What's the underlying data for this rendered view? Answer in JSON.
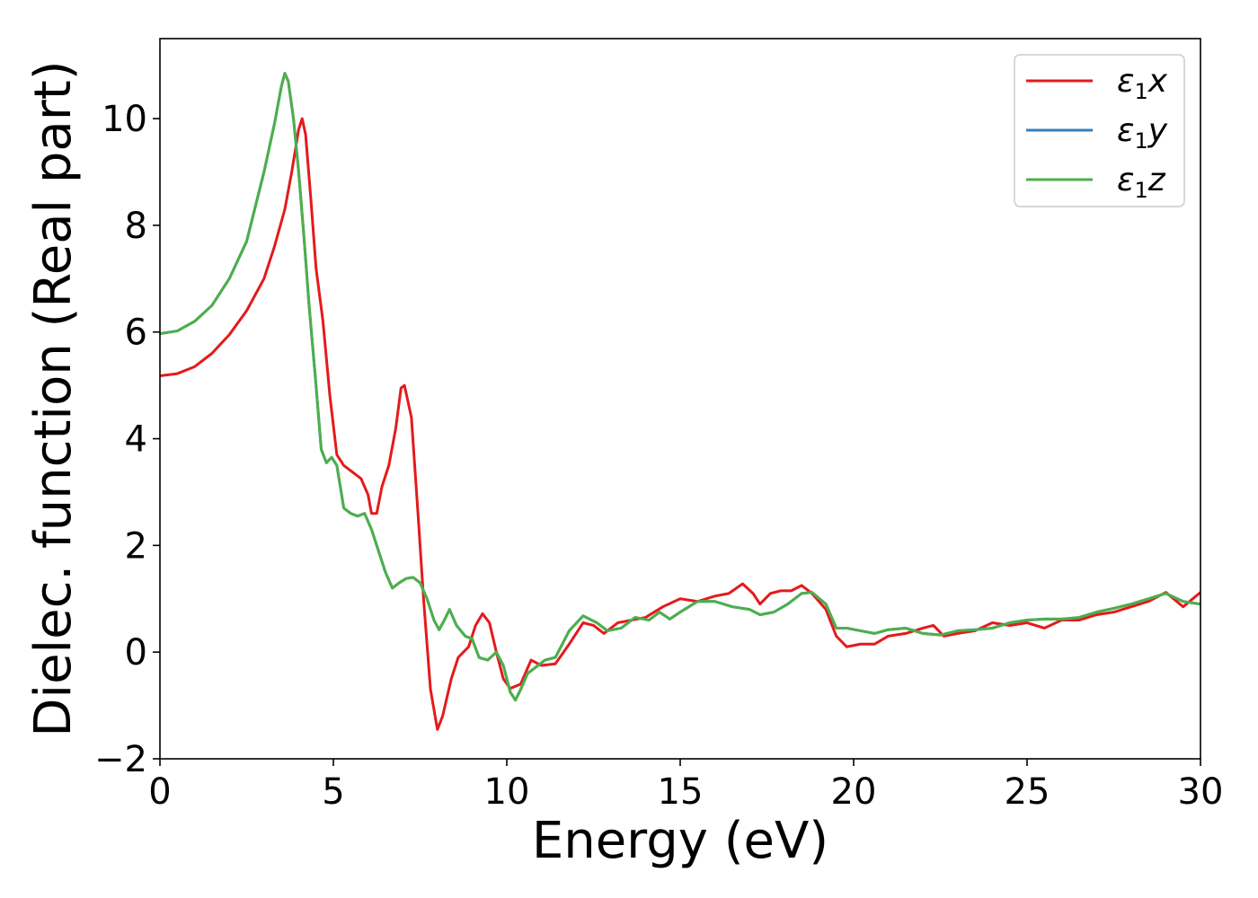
{
  "chart_data": {
    "type": "line",
    "title": "",
    "xlabel": "Energy (eV)",
    "ylabel": "Dielec. function (Real part)",
    "xlim": [
      0,
      30
    ],
    "ylim": [
      -2,
      11.5
    ],
    "xticks": [
      0,
      5,
      10,
      15,
      20,
      25,
      30
    ],
    "xtick_labels": [
      "0",
      "5",
      "10",
      "15",
      "20",
      "25",
      "30"
    ],
    "yticks": [
      -2,
      0,
      2,
      4,
      6,
      8,
      10
    ],
    "ytick_labels": [
      "−2",
      "0",
      "2",
      "4",
      "6",
      "8",
      "10"
    ],
    "grid": false,
    "legend_position": "top-right",
    "series": [
      {
        "name": "ε₁x",
        "legend_main": "ε",
        "legend_sub": "1",
        "legend_var": "x",
        "color": "#e41a1c",
        "points": [
          [
            0,
            5.18
          ],
          [
            0.5,
            5.22
          ],
          [
            1.0,
            5.35
          ],
          [
            1.5,
            5.6
          ],
          [
            2.0,
            5.95
          ],
          [
            2.5,
            6.4
          ],
          [
            3.0,
            7.0
          ],
          [
            3.3,
            7.6
          ],
          [
            3.6,
            8.3
          ],
          [
            3.8,
            9.0
          ],
          [
            4.0,
            9.8
          ],
          [
            4.1,
            10.0
          ],
          [
            4.2,
            9.7
          ],
          [
            4.35,
            8.5
          ],
          [
            4.5,
            7.2
          ],
          [
            4.7,
            6.2
          ],
          [
            4.9,
            4.8
          ],
          [
            5.1,
            3.7
          ],
          [
            5.3,
            3.5
          ],
          [
            5.5,
            3.4
          ],
          [
            5.8,
            3.25
          ],
          [
            6.0,
            2.95
          ],
          [
            6.1,
            2.6
          ],
          [
            6.25,
            2.6
          ],
          [
            6.4,
            3.1
          ],
          [
            6.6,
            3.5
          ],
          [
            6.8,
            4.2
          ],
          [
            6.95,
            4.95
          ],
          [
            7.05,
            5.0
          ],
          [
            7.25,
            4.4
          ],
          [
            7.45,
            2.5
          ],
          [
            7.6,
            1.0
          ],
          [
            7.8,
            -0.7
          ],
          [
            8.0,
            -1.45
          ],
          [
            8.15,
            -1.2
          ],
          [
            8.4,
            -0.5
          ],
          [
            8.6,
            -0.1
          ],
          [
            8.9,
            0.1
          ],
          [
            9.1,
            0.5
          ],
          [
            9.3,
            0.72
          ],
          [
            9.5,
            0.55
          ],
          [
            9.7,
            0.0
          ],
          [
            9.9,
            -0.5
          ],
          [
            10.1,
            -0.68
          ],
          [
            10.4,
            -0.6
          ],
          [
            10.7,
            -0.15
          ],
          [
            11.0,
            -0.25
          ],
          [
            11.4,
            -0.22
          ],
          [
            11.8,
            0.15
          ],
          [
            12.2,
            0.55
          ],
          [
            12.5,
            0.5
          ],
          [
            12.8,
            0.35
          ],
          [
            13.2,
            0.55
          ],
          [
            13.6,
            0.6
          ],
          [
            14.0,
            0.65
          ],
          [
            14.5,
            0.85
          ],
          [
            15.0,
            1.0
          ],
          [
            15.5,
            0.95
          ],
          [
            16.0,
            1.05
          ],
          [
            16.4,
            1.1
          ],
          [
            16.8,
            1.28
          ],
          [
            17.1,
            1.1
          ],
          [
            17.3,
            0.9
          ],
          [
            17.6,
            1.1
          ],
          [
            17.9,
            1.15
          ],
          [
            18.2,
            1.15
          ],
          [
            18.5,
            1.25
          ],
          [
            18.8,
            1.1
          ],
          [
            19.2,
            0.8
          ],
          [
            19.5,
            0.3
          ],
          [
            19.8,
            0.1
          ],
          [
            20.2,
            0.15
          ],
          [
            20.6,
            0.15
          ],
          [
            21.0,
            0.3
          ],
          [
            21.5,
            0.35
          ],
          [
            22.0,
            0.45
          ],
          [
            22.3,
            0.5
          ],
          [
            22.6,
            0.3
          ],
          [
            23.0,
            0.35
          ],
          [
            23.5,
            0.4
          ],
          [
            24.0,
            0.55
          ],
          [
            24.5,
            0.5
          ],
          [
            25.0,
            0.55
          ],
          [
            25.5,
            0.45
          ],
          [
            26.0,
            0.6
          ],
          [
            26.5,
            0.6
          ],
          [
            27.0,
            0.7
          ],
          [
            27.5,
            0.75
          ],
          [
            28.0,
            0.85
          ],
          [
            28.5,
            0.95
          ],
          [
            29.0,
            1.12
          ],
          [
            29.5,
            0.85
          ],
          [
            30.0,
            1.12
          ]
        ]
      },
      {
        "name": "ε₁y",
        "legend_main": "ε",
        "legend_sub": "1",
        "legend_var": "y",
        "color": "#377eb8",
        "points": [
          [
            0,
            5.97
          ],
          [
            0.5,
            6.02
          ],
          [
            1.0,
            6.2
          ],
          [
            1.5,
            6.5
          ],
          [
            2.0,
            7.0
          ],
          [
            2.5,
            7.7
          ],
          [
            3.0,
            9.0
          ],
          [
            3.3,
            9.9
          ],
          [
            3.5,
            10.6
          ],
          [
            3.6,
            10.85
          ],
          [
            3.7,
            10.7
          ],
          [
            3.85,
            10.0
          ],
          [
            4.0,
            9.0
          ],
          [
            4.15,
            7.8
          ],
          [
            4.3,
            6.5
          ],
          [
            4.5,
            5.0
          ],
          [
            4.65,
            3.8
          ],
          [
            4.8,
            3.55
          ],
          [
            4.95,
            3.65
          ],
          [
            5.1,
            3.5
          ],
          [
            5.3,
            2.7
          ],
          [
            5.5,
            2.6
          ],
          [
            5.7,
            2.55
          ],
          [
            5.9,
            2.6
          ],
          [
            6.1,
            2.3
          ],
          [
            6.3,
            1.9
          ],
          [
            6.5,
            1.5
          ],
          [
            6.7,
            1.2
          ],
          [
            6.9,
            1.3
          ],
          [
            7.1,
            1.38
          ],
          [
            7.3,
            1.4
          ],
          [
            7.5,
            1.3
          ],
          [
            7.7,
            1.0
          ],
          [
            7.9,
            0.6
          ],
          [
            8.05,
            0.42
          ],
          [
            8.2,
            0.6
          ],
          [
            8.35,
            0.8
          ],
          [
            8.55,
            0.5
          ],
          [
            8.8,
            0.3
          ],
          [
            9.0,
            0.25
          ],
          [
            9.2,
            -0.1
          ],
          [
            9.45,
            -0.15
          ],
          [
            9.7,
            0.0
          ],
          [
            9.9,
            -0.25
          ],
          [
            10.1,
            -0.75
          ],
          [
            10.25,
            -0.9
          ],
          [
            10.4,
            -0.7
          ],
          [
            10.6,
            -0.4
          ],
          [
            10.8,
            -0.3
          ],
          [
            11.1,
            -0.15
          ],
          [
            11.4,
            -0.1
          ],
          [
            11.8,
            0.4
          ],
          [
            12.2,
            0.68
          ],
          [
            12.6,
            0.55
          ],
          [
            12.9,
            0.4
          ],
          [
            13.3,
            0.45
          ],
          [
            13.7,
            0.65
          ],
          [
            14.1,
            0.6
          ],
          [
            14.4,
            0.75
          ],
          [
            14.7,
            0.62
          ],
          [
            15.0,
            0.75
          ],
          [
            15.5,
            0.95
          ],
          [
            16.0,
            0.95
          ],
          [
            16.5,
            0.85
          ],
          [
            17.0,
            0.8
          ],
          [
            17.3,
            0.7
          ],
          [
            17.7,
            0.75
          ],
          [
            18.1,
            0.9
          ],
          [
            18.5,
            1.1
          ],
          [
            18.8,
            1.12
          ],
          [
            19.2,
            0.9
          ],
          [
            19.5,
            0.45
          ],
          [
            19.8,
            0.45
          ],
          [
            20.2,
            0.4
          ],
          [
            20.6,
            0.35
          ],
          [
            21.0,
            0.42
          ],
          [
            21.5,
            0.45
          ],
          [
            22.0,
            0.35
          ],
          [
            22.5,
            0.32
          ],
          [
            23.0,
            0.4
          ],
          [
            23.5,
            0.42
          ],
          [
            24.0,
            0.45
          ],
          [
            24.5,
            0.55
          ],
          [
            25.0,
            0.6
          ],
          [
            25.5,
            0.62
          ],
          [
            26.0,
            0.62
          ],
          [
            26.5,
            0.65
          ],
          [
            27.0,
            0.75
          ],
          [
            27.5,
            0.82
          ],
          [
            28.0,
            0.9
          ],
          [
            28.5,
            1.0
          ],
          [
            29.0,
            1.1
          ],
          [
            29.5,
            0.95
          ],
          [
            30.0,
            0.9
          ]
        ]
      },
      {
        "name": "ε₁z",
        "legend_main": "ε",
        "legend_sub": "1",
        "legend_var": "z",
        "color": "#4daf4a",
        "points": [
          [
            0,
            5.97
          ],
          [
            0.5,
            6.02
          ],
          [
            1.0,
            6.2
          ],
          [
            1.5,
            6.5
          ],
          [
            2.0,
            7.0
          ],
          [
            2.5,
            7.7
          ],
          [
            3.0,
            9.0
          ],
          [
            3.3,
            9.9
          ],
          [
            3.5,
            10.6
          ],
          [
            3.6,
            10.85
          ],
          [
            3.7,
            10.7
          ],
          [
            3.85,
            10.0
          ],
          [
            4.0,
            9.0
          ],
          [
            4.15,
            7.8
          ],
          [
            4.3,
            6.5
          ],
          [
            4.5,
            5.0
          ],
          [
            4.65,
            3.8
          ],
          [
            4.8,
            3.55
          ],
          [
            4.95,
            3.65
          ],
          [
            5.1,
            3.5
          ],
          [
            5.3,
            2.7
          ],
          [
            5.5,
            2.6
          ],
          [
            5.7,
            2.55
          ],
          [
            5.9,
            2.6
          ],
          [
            6.1,
            2.3
          ],
          [
            6.3,
            1.9
          ],
          [
            6.5,
            1.5
          ],
          [
            6.7,
            1.2
          ],
          [
            6.9,
            1.3
          ],
          [
            7.1,
            1.38
          ],
          [
            7.3,
            1.4
          ],
          [
            7.5,
            1.3
          ],
          [
            7.7,
            1.0
          ],
          [
            7.9,
            0.6
          ],
          [
            8.05,
            0.42
          ],
          [
            8.2,
            0.6
          ],
          [
            8.35,
            0.8
          ],
          [
            8.55,
            0.5
          ],
          [
            8.8,
            0.3
          ],
          [
            9.0,
            0.25
          ],
          [
            9.2,
            -0.1
          ],
          [
            9.45,
            -0.15
          ],
          [
            9.7,
            0.0
          ],
          [
            9.9,
            -0.25
          ],
          [
            10.1,
            -0.75
          ],
          [
            10.25,
            -0.9
          ],
          [
            10.4,
            -0.7
          ],
          [
            10.6,
            -0.4
          ],
          [
            10.8,
            -0.3
          ],
          [
            11.1,
            -0.15
          ],
          [
            11.4,
            -0.1
          ],
          [
            11.8,
            0.4
          ],
          [
            12.2,
            0.68
          ],
          [
            12.6,
            0.55
          ],
          [
            12.9,
            0.4
          ],
          [
            13.3,
            0.45
          ],
          [
            13.7,
            0.65
          ],
          [
            14.1,
            0.6
          ],
          [
            14.4,
            0.75
          ],
          [
            14.7,
            0.62
          ],
          [
            15.0,
            0.75
          ],
          [
            15.5,
            0.95
          ],
          [
            16.0,
            0.95
          ],
          [
            16.5,
            0.85
          ],
          [
            17.0,
            0.8
          ],
          [
            17.3,
            0.7
          ],
          [
            17.7,
            0.75
          ],
          [
            18.1,
            0.9
          ],
          [
            18.5,
            1.1
          ],
          [
            18.8,
            1.12
          ],
          [
            19.2,
            0.9
          ],
          [
            19.5,
            0.45
          ],
          [
            19.8,
            0.45
          ],
          [
            20.2,
            0.4
          ],
          [
            20.6,
            0.35
          ],
          [
            21.0,
            0.42
          ],
          [
            21.5,
            0.45
          ],
          [
            22.0,
            0.35
          ],
          [
            22.5,
            0.32
          ],
          [
            23.0,
            0.4
          ],
          [
            23.5,
            0.42
          ],
          [
            24.0,
            0.45
          ],
          [
            24.5,
            0.55
          ],
          [
            25.0,
            0.6
          ],
          [
            25.5,
            0.62
          ],
          [
            26.0,
            0.62
          ],
          [
            26.5,
            0.65
          ],
          [
            27.0,
            0.75
          ],
          [
            27.5,
            0.82
          ],
          [
            28.0,
            0.9
          ],
          [
            28.5,
            1.0
          ],
          [
            29.0,
            1.1
          ],
          [
            29.5,
            0.95
          ],
          [
            30.0,
            0.9
          ]
        ]
      }
    ]
  }
}
